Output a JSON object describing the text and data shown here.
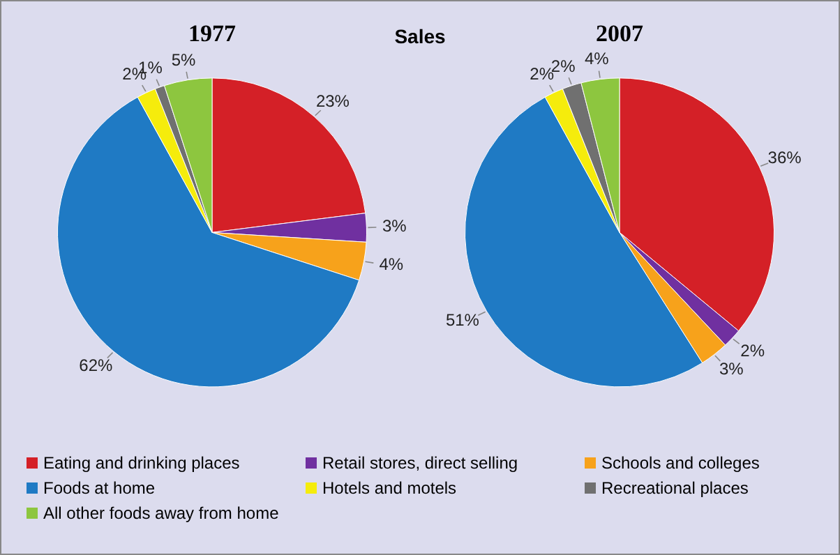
{
  "chart_data": [
    {
      "type": "pie",
      "title": "1977",
      "annotations": [
        "Sales"
      ],
      "legend": "bottom",
      "categories": [
        "Eating and drinking places",
        "Retail stores, direct selling",
        "Schools and colleges",
        "Foods at home",
        "Hotels and motels",
        "Recreational places",
        "All other foods away from home"
      ],
      "values": [
        23,
        3,
        4,
        62,
        2,
        1,
        5
      ],
      "value_labels": [
        "23%",
        "3%",
        "4%",
        "62%",
        "2%",
        "1%",
        "5%"
      ],
      "colors": [
        "#d42027",
        "#7030a0",
        "#f7a21b",
        "#1f7ac4",
        "#f5ec0c",
        "#707070",
        "#8dc63f"
      ]
    },
    {
      "type": "pie",
      "title": "2007",
      "categories": [
        null,
        null,
        null,
        null,
        null,
        null,
        null
      ],
      "values": [
        36,
        2,
        3,
        51,
        2,
        2,
        4
      ],
      "value_labels": [
        "36%",
        "2%",
        "3%",
        "51%",
        "2%",
        "2%",
        "4%"
      ],
      "colors": [
        "#d42027",
        "#7030a0",
        "#f7a21b",
        "#1f7ac4",
        "#f5ec0c",
        "#707070",
        "#8dc63f"
      ]
    }
  ]
}
